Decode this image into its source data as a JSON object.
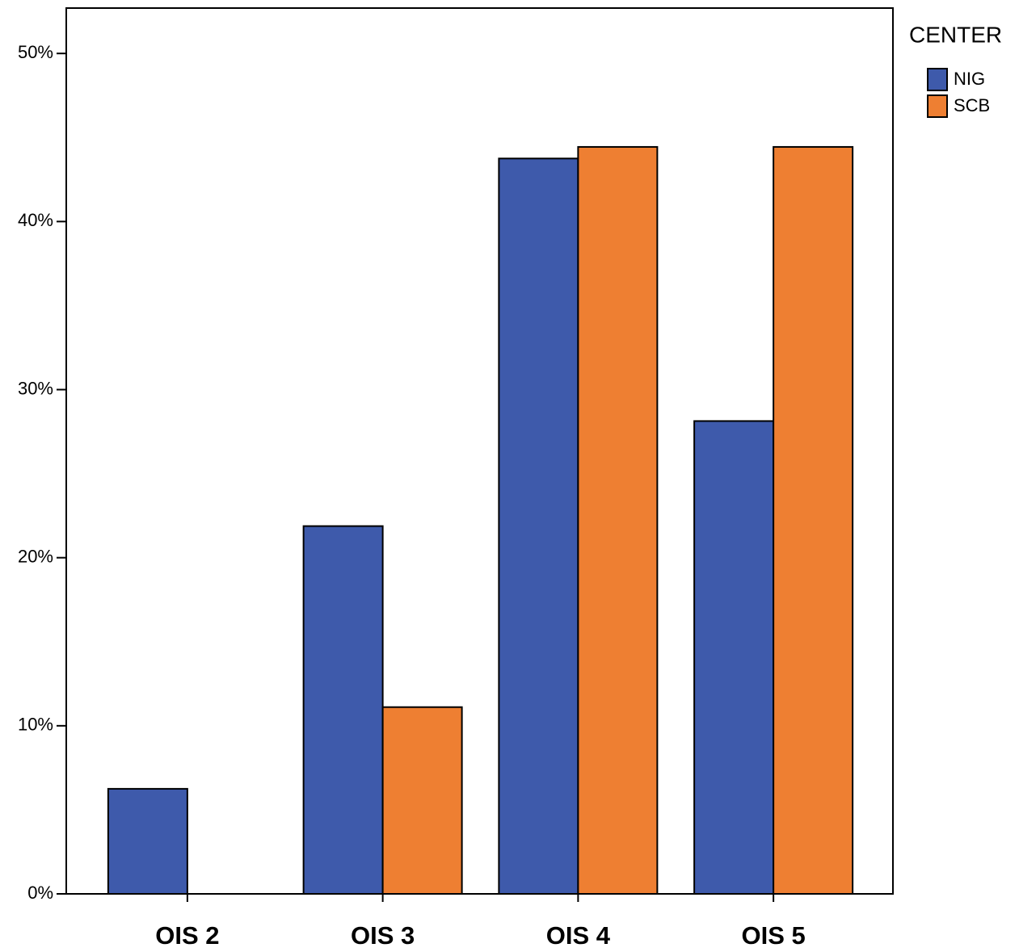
{
  "chart_data": {
    "type": "bar",
    "categories": [
      "OIS 2",
      "OIS 3",
      "OIS 4",
      "OIS 5"
    ],
    "series": [
      {
        "name": "NIG",
        "color": "#3e5aab",
        "values": [
          6.25,
          21.88,
          43.75,
          28.13
        ]
      },
      {
        "name": "SCB",
        "color": "#ee7f32",
        "values": [
          0,
          11.11,
          44.44,
          44.44
        ]
      }
    ],
    "ylim": [
      0,
      52.7
    ],
    "yticks": [
      {
        "value": 0,
        "label": "0%"
      },
      {
        "value": 10,
        "label": "10%"
      },
      {
        "value": 20,
        "label": "20%"
      },
      {
        "value": 30,
        "label": "30%"
      },
      {
        "value": 40,
        "label": "40%"
      },
      {
        "value": 50,
        "label": "50%"
      }
    ],
    "legend_title": "CENTER",
    "legend_position": "right",
    "grid": false
  }
}
